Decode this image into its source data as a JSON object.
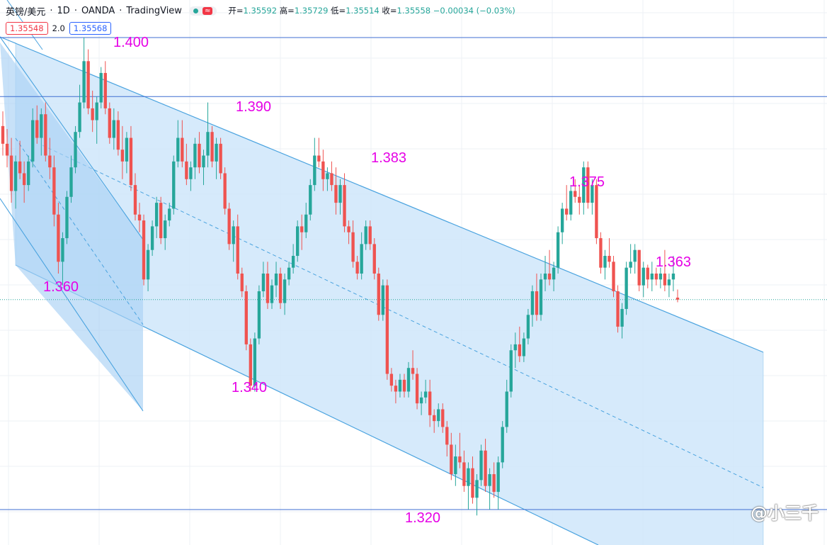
{
  "header": {
    "symbol": "英镑/美元",
    "separator": "·",
    "timeframe": "1D",
    "broker": "OANDA",
    "platform": "TradingView",
    "wave_badge": "≈",
    "ohlc": {
      "open_label": "开=",
      "open": "1.35592",
      "high_label": "高=",
      "high": "1.35729",
      "low_label": "低=",
      "low": "1.35514",
      "close_label": "收=",
      "close": "1.35558",
      "change": "−0.00034 (−0.03%)"
    }
  },
  "quote": {
    "sell": "1.35548",
    "spread": "2.0",
    "buy": "1.35568"
  },
  "watermark": "@小三千",
  "colors": {
    "up": "#26a69a",
    "down": "#ef5350",
    "channel_line": "#4aa3df",
    "channel_fill": "#cfe6fa",
    "horizontal_line": "#3f6fd1",
    "annotation": "#e600e6"
  },
  "chart_data": {
    "type": "candlestick",
    "title": "英镑/美元 · 1D · OANDA",
    "price_annotations": [
      "1.400",
      "1.390",
      "1.383",
      "1.375",
      "1.363",
      "1.360",
      "1.340",
      "1.320"
    ],
    "horizontal_levels": [
      1.4,
      1.39,
      1.32
    ],
    "current_price": 1.35558,
    "grid": true,
    "candles": [
      [
        1.385,
        1.3875,
        1.38,
        1.382
      ],
      [
        1.382,
        1.3845,
        1.378,
        1.38
      ],
      [
        1.38,
        1.383,
        1.372,
        1.374
      ],
      [
        1.374,
        1.38,
        1.371,
        1.379
      ],
      [
        1.379,
        1.3825,
        1.376,
        1.377
      ],
      [
        1.377,
        1.379,
        1.372,
        1.375
      ],
      [
        1.375,
        1.38,
        1.374,
        1.379
      ],
      [
        1.379,
        1.388,
        1.378,
        1.386
      ],
      [
        1.386,
        1.3885,
        1.382,
        1.383
      ],
      [
        1.383,
        1.388,
        1.38,
        1.387
      ],
      [
        1.387,
        1.389,
        1.379,
        1.38
      ],
      [
        1.38,
        1.383,
        1.376,
        1.378
      ],
      [
        1.378,
        1.38,
        1.368,
        1.37
      ],
      [
        1.37,
        1.372,
        1.36,
        1.362
      ],
      [
        1.362,
        1.367,
        1.358,
        1.366
      ],
      [
        1.366,
        1.374,
        1.365,
        1.373
      ],
      [
        1.373,
        1.38,
        1.372,
        1.378
      ],
      [
        1.378,
        1.385,
        1.377,
        1.384
      ],
      [
        1.384,
        1.392,
        1.383,
        1.389
      ],
      [
        1.389,
        1.4,
        1.388,
        1.396
      ],
      [
        1.396,
        1.398,
        1.387,
        1.388
      ],
      [
        1.388,
        1.391,
        1.384,
        1.386
      ],
      [
        1.386,
        1.39,
        1.382,
        1.389
      ],
      [
        1.389,
        1.395,
        1.388,
        1.394
      ],
      [
        1.394,
        1.396,
        1.387,
        1.388
      ],
      [
        1.388,
        1.389,
        1.382,
        1.383
      ],
      [
        1.383,
        1.388,
        1.381,
        1.386
      ],
      [
        1.386,
        1.3875,
        1.38,
        1.381
      ],
      [
        1.381,
        1.385,
        1.376,
        1.379
      ],
      [
        1.379,
        1.384,
        1.377,
        1.383
      ],
      [
        1.383,
        1.385,
        1.374,
        1.375
      ],
      [
        1.375,
        1.377,
        1.369,
        1.37
      ],
      [
        1.37,
        1.372,
        1.367,
        1.369
      ],
      [
        1.369,
        1.37,
        1.358,
        1.359
      ],
      [
        1.359,
        1.365,
        1.357,
        1.364
      ],
      [
        1.364,
        1.369,
        1.363,
        1.368
      ],
      [
        1.368,
        1.373,
        1.366,
        1.372
      ],
      [
        1.372,
        1.373,
        1.365,
        1.366
      ],
      [
        1.366,
        1.37,
        1.364,
        1.369
      ],
      [
        1.369,
        1.372,
        1.368,
        1.371
      ],
      [
        1.371,
        1.38,
        1.37,
        1.379
      ],
      [
        1.379,
        1.386,
        1.378,
        1.383
      ],
      [
        1.383,
        1.386,
        1.378,
        1.379
      ],
      [
        1.379,
        1.382,
        1.375,
        1.376
      ],
      [
        1.376,
        1.379,
        1.374,
        1.378
      ],
      [
        1.378,
        1.383,
        1.376,
        1.382
      ],
      [
        1.382,
        1.384,
        1.377,
        1.378
      ],
      [
        1.378,
        1.381,
        1.375,
        1.38
      ],
      [
        1.38,
        1.389,
        1.378,
        1.384
      ],
      [
        1.384,
        1.385,
        1.378,
        1.379
      ],
      [
        1.379,
        1.383,
        1.376,
        1.382
      ],
      [
        1.382,
        1.383,
        1.376,
        1.377
      ],
      [
        1.377,
        1.378,
        1.37,
        1.371
      ],
      [
        1.371,
        1.372,
        1.364,
        1.365
      ],
      [
        1.365,
        1.369,
        1.362,
        1.368
      ],
      [
        1.368,
        1.37,
        1.359,
        1.36
      ],
      [
        1.36,
        1.361,
        1.356,
        1.357
      ],
      [
        1.357,
        1.358,
        1.347,
        1.348
      ],
      [
        1.348,
        1.349,
        1.34,
        1.341
      ],
      [
        1.341,
        1.35,
        1.34,
        1.349
      ],
      [
        1.349,
        1.358,
        1.348,
        1.357
      ],
      [
        1.357,
        1.362,
        1.356,
        1.36
      ],
      [
        1.36,
        1.362,
        1.354,
        1.355
      ],
      [
        1.355,
        1.359,
        1.354,
        1.358
      ],
      [
        1.358,
        1.362,
        1.356,
        1.36
      ],
      [
        1.36,
        1.361,
        1.354,
        1.355
      ],
      [
        1.355,
        1.36,
        1.353,
        1.359
      ],
      [
        1.359,
        1.362,
        1.358,
        1.361
      ],
      [
        1.361,
        1.365,
        1.36,
        1.363
      ],
      [
        1.363,
        1.369,
        1.362,
        1.368
      ],
      [
        1.368,
        1.37,
        1.364,
        1.367
      ],
      [
        1.367,
        1.372,
        1.366,
        1.37
      ],
      [
        1.37,
        1.376,
        1.369,
        1.375
      ],
      [
        1.375,
        1.383,
        1.374,
        1.38
      ],
      [
        1.38,
        1.383,
        1.378,
        1.379
      ],
      [
        1.379,
        1.381,
        1.374,
        1.376
      ],
      [
        1.376,
        1.378,
        1.374,
        1.377
      ],
      [
        1.377,
        1.379,
        1.374,
        1.375
      ],
      [
        1.375,
        1.378,
        1.37,
        1.372
      ],
      [
        1.372,
        1.376,
        1.37,
        1.375
      ],
      [
        1.375,
        1.377,
        1.367,
        1.368
      ],
      [
        1.368,
        1.369,
        1.365,
        1.367
      ],
      [
        1.367,
        1.369,
        1.361,
        1.362
      ],
      [
        1.362,
        1.363,
        1.359,
        1.36
      ],
      [
        1.36,
        1.367,
        1.359,
        1.365
      ],
      [
        1.365,
        1.369,
        1.364,
        1.368
      ],
      [
        1.368,
        1.369,
        1.364,
        1.365
      ],
      [
        1.365,
        1.366,
        1.359,
        1.36
      ],
      [
        1.36,
        1.361,
        1.352,
        1.353
      ],
      [
        1.353,
        1.359,
        1.352,
        1.358
      ],
      [
        1.358,
        1.359,
        1.342,
        1.343
      ],
      [
        1.343,
        1.344,
        1.34,
        1.341
      ],
      [
        1.341,
        1.342,
        1.338,
        1.34
      ],
      [
        1.34,
        1.343,
        1.339,
        1.342
      ],
      [
        1.342,
        1.343,
        1.339,
        1.34
      ],
      [
        1.34,
        1.345,
        1.339,
        1.344
      ],
      [
        1.344,
        1.347,
        1.342,
        1.343
      ],
      [
        1.343,
        1.344,
        1.337,
        1.338
      ],
      [
        1.338,
        1.34,
        1.336,
        1.339
      ],
      [
        1.339,
        1.342,
        1.338,
        1.34
      ],
      [
        1.34,
        1.342,
        1.334,
        1.336
      ],
      [
        1.336,
        1.337,
        1.333,
        1.335
      ],
      [
        1.335,
        1.338,
        1.334,
        1.337
      ],
      [
        1.337,
        1.338,
        1.333,
        1.334
      ],
      [
        1.334,
        1.335,
        1.329,
        1.331
      ],
      [
        1.331,
        1.333,
        1.325,
        1.326
      ],
      [
        1.326,
        1.331,
        1.324,
        1.329
      ],
      [
        1.329,
        1.333,
        1.327,
        1.328
      ],
      [
        1.328,
        1.33,
        1.323,
        1.324
      ],
      [
        1.324,
        1.328,
        1.32,
        1.327
      ],
      [
        1.327,
        1.329,
        1.321,
        1.322
      ],
      [
        1.322,
        1.326,
        1.319,
        1.325
      ],
      [
        1.325,
        1.331,
        1.324,
        1.33
      ],
      [
        1.33,
        1.332,
        1.323,
        1.324
      ],
      [
        1.324,
        1.327,
        1.32,
        1.326
      ],
      [
        1.326,
        1.328,
        1.322,
        1.323
      ],
      [
        1.323,
        1.329,
        1.32,
        1.328
      ],
      [
        1.328,
        1.335,
        1.327,
        1.334
      ],
      [
        1.334,
        1.342,
        1.333,
        1.34
      ],
      [
        1.34,
        1.348,
        1.339,
        1.347
      ],
      [
        1.347,
        1.35,
        1.344,
        1.348
      ],
      [
        1.348,
        1.351,
        1.345,
        1.346
      ],
      [
        1.346,
        1.35,
        1.345,
        1.349
      ],
      [
        1.349,
        1.354,
        1.348,
        1.353
      ],
      [
        1.353,
        1.358,
        1.351,
        1.357
      ],
      [
        1.357,
        1.36,
        1.352,
        1.353
      ],
      [
        1.353,
        1.36,
        1.352,
        1.359
      ],
      [
        1.359,
        1.363,
        1.357,
        1.36
      ],
      [
        1.36,
        1.364,
        1.358,
        1.359
      ],
      [
        1.359,
        1.362,
        1.357,
        1.361
      ],
      [
        1.361,
        1.368,
        1.36,
        1.367
      ],
      [
        1.367,
        1.372,
        1.365,
        1.371
      ],
      [
        1.371,
        1.375,
        1.369,
        1.37
      ],
      [
        1.37,
        1.375,
        1.369,
        1.374
      ],
      [
        1.374,
        1.376,
        1.372,
        1.373
      ],
      [
        1.373,
        1.375,
        1.37,
        1.372
      ],
      [
        1.372,
        1.379,
        1.37,
        1.378
      ],
      [
        1.378,
        1.379,
        1.371,
        1.372
      ],
      [
        1.372,
        1.376,
        1.37,
        1.375
      ],
      [
        1.375,
        1.376,
        1.365,
        1.366
      ],
      [
        1.366,
        1.367,
        1.36,
        1.361
      ],
      [
        1.361,
        1.364,
        1.359,
        1.363
      ],
      [
        1.363,
        1.366,
        1.361,
        1.362
      ],
      [
        1.362,
        1.363,
        1.356,
        1.357
      ],
      [
        1.357,
        1.358,
        1.35,
        1.351
      ],
      [
        1.351,
        1.355,
        1.349,
        1.354
      ],
      [
        1.354,
        1.362,
        1.353,
        1.361
      ],
      [
        1.361,
        1.365,
        1.36,
        1.362
      ],
      [
        1.362,
        1.365,
        1.36,
        1.364
      ],
      [
        1.364,
        1.364,
        1.357,
        1.358
      ],
      [
        1.358,
        1.362,
        1.356,
        1.361
      ],
      [
        1.361,
        1.3615,
        1.3575,
        1.359
      ],
      [
        1.359,
        1.362,
        1.357,
        1.36
      ],
      [
        1.36,
        1.361,
        1.358,
        1.359
      ],
      [
        1.359,
        1.361,
        1.3575,
        1.36
      ],
      [
        1.36,
        1.364,
        1.357,
        1.358
      ],
      [
        1.358,
        1.36,
        1.356,
        1.359
      ],
      [
        1.359,
        1.363,
        1.357,
        1.36
      ],
      [
        1.35592,
        1.35729,
        1.35514,
        1.35558
      ]
    ]
  }
}
